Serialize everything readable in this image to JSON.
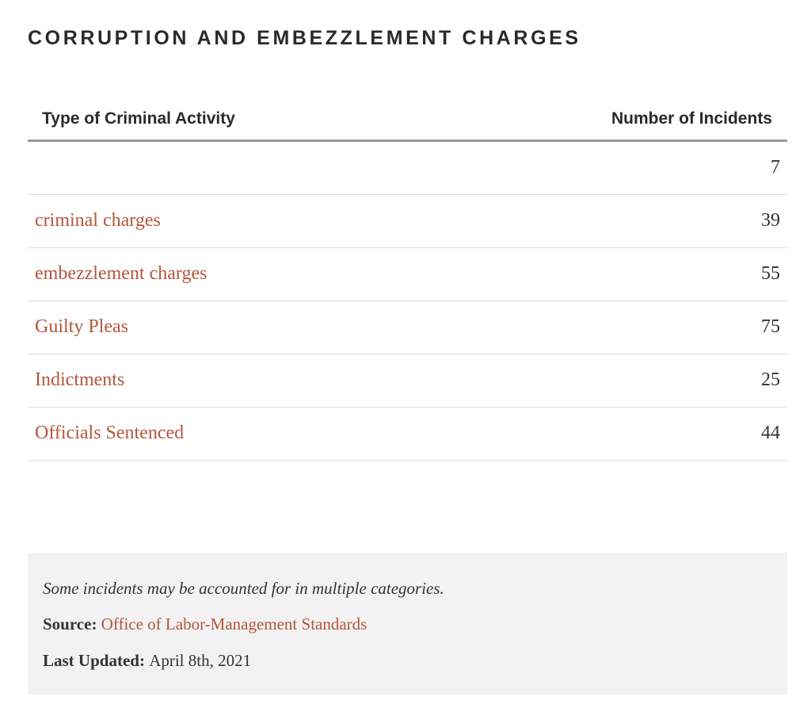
{
  "title": "CORRUPTION AND EMBEZZLEMENT CHARGES",
  "table": {
    "headers": {
      "type": "Type of Criminal Activity",
      "count": "Number of Incidents"
    },
    "rows": [
      {
        "label": "",
        "value": "7"
      },
      {
        "label": "criminal charges",
        "value": "39"
      },
      {
        "label": "embezzlement charges",
        "value": "55"
      },
      {
        "label": "Guilty Pleas",
        "value": "75"
      },
      {
        "label": "Indictments",
        "value": "25"
      },
      {
        "label": "Officials Sentenced",
        "value": "44"
      }
    ]
  },
  "notes": {
    "disclaimer": "Some incidents may be accounted for in multiple categories.",
    "source_label": "Source:",
    "source_link": "Office of Labor-Management Standards",
    "updated_label": "Last Updated:",
    "updated_value": "April 8th, 2021"
  },
  "colors": {
    "link": "#b5563b",
    "text": "#333333",
    "notes_background": "#f2f2f2"
  }
}
